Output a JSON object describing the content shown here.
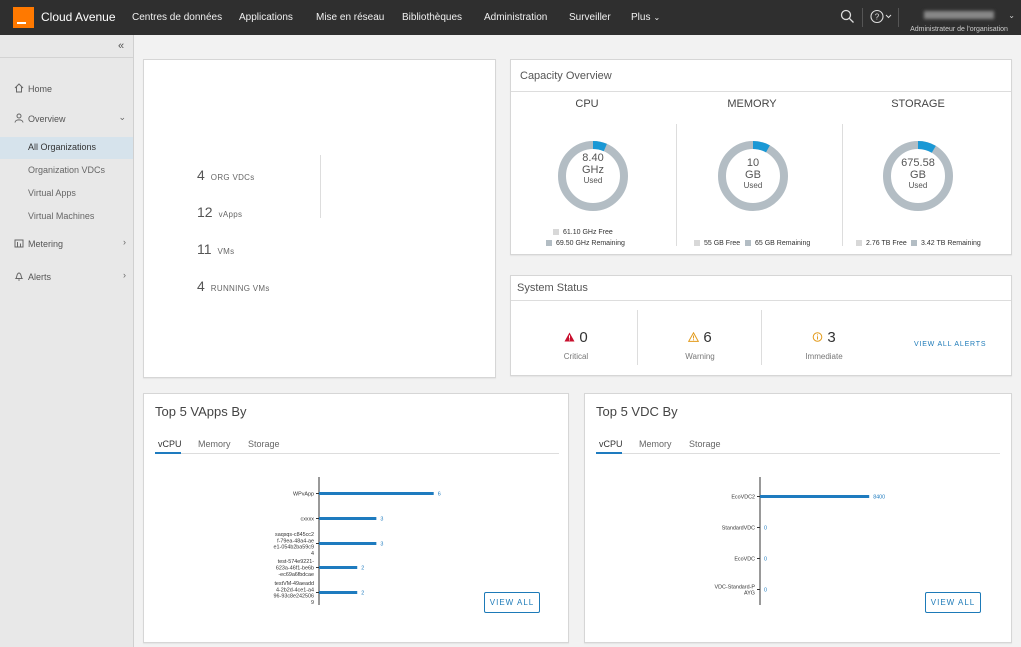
{
  "header": {
    "brand": "Cloud Avenue",
    "nav": [
      "Centres de données",
      "Applications",
      "Mise en réseau",
      "Bibliothèques",
      "Administration",
      "Surveiller",
      "Plus"
    ],
    "user_role": "Administrateur de l'organisation",
    "icons": [
      "search-icon",
      "help-icon"
    ]
  },
  "sidebar": {
    "items": [
      {
        "label": "Home",
        "icon": "home-icon"
      },
      {
        "label": "Overview",
        "icon": "user-icon"
      },
      {
        "label": "Metering",
        "icon": "chart-icon"
      },
      {
        "label": "Alerts",
        "icon": "bell-icon"
      }
    ],
    "sub_items": [
      "All Organizations",
      "Organization VDCs",
      "Virtual Apps",
      "Virtual Machines"
    ]
  },
  "summary": {
    "stats": [
      {
        "num": "4",
        "label": "ORG VDCs"
      },
      {
        "num": "12",
        "label": "vApps"
      },
      {
        "num": "11",
        "label": "VMs"
      },
      {
        "num": "4",
        "label": "RUNNING VMs"
      }
    ]
  },
  "capacity": {
    "title": "Capacity Overview",
    "gauges": [
      {
        "title": "CPU",
        "value": "8.40",
        "unit": "GHz",
        "used": "Used",
        "fraction": 0.065,
        "legend": [
          "61.10 GHz Free",
          "69.50 GHz Remaining"
        ]
      },
      {
        "title": "MEMORY",
        "value": "10",
        "unit": "GB",
        "used": "Used",
        "fraction": 0.08,
        "legend": [
          "55 GB Free",
          "65 GB Remaining"
        ]
      },
      {
        "title": "STORAGE",
        "value": "675.58",
        "unit": "GB",
        "used": "Used",
        "fraction": 0.085,
        "legend": [
          "2.76 TB Free",
          "3.42 TB Remaining"
        ]
      }
    ]
  },
  "status": {
    "title": "System Status",
    "items": [
      {
        "num": "0",
        "label": "Critical",
        "icon": "critical-icon"
      },
      {
        "num": "6",
        "label": "Warning",
        "icon": "warning-icon"
      },
      {
        "num": "3",
        "label": "Immediate",
        "icon": "info-icon"
      }
    ],
    "link": "VIEW ALL ALERTS"
  },
  "top_vapps": {
    "title": "Top 5 VApps By",
    "tabs": [
      "vCPU",
      "Memory",
      "Storage"
    ],
    "button": "VIEW ALL"
  },
  "top_vdcs": {
    "title": "Top 5 VDC By",
    "tabs": [
      "vCPU",
      "Memory",
      "Storage"
    ],
    "button": "VIEW ALL"
  },
  "colors": {
    "accent": "#1e7bbf",
    "ring_used": "#1a98d5",
    "ring_free": "#b3bdc4",
    "orange": "#ff7900",
    "critical": "#c8102e",
    "warning": "#e39b1c"
  },
  "chart_data": [
    {
      "type": "bar",
      "orientation": "horizontal",
      "categories": [
        [
          "WPvApp"
        ],
        [
          "cxxxx"
        ],
        [
          "saqsqs-c845cc2",
          "f-79ea-48a4-ae",
          "e1-054b2ba59c9",
          "4"
        ],
        [
          "test-574e9221-",
          "623a-46f1-be6b",
          "-ec69a6fbdcae"
        ],
        [
          "testVM-49aeadd",
          "4-2b2d-4ce1-a4",
          "96-93c8e242506",
          "9"
        ]
      ],
      "values": [
        6,
        3,
        3,
        2,
        2
      ],
      "xlim": [
        0,
        6.8
      ]
    },
    {
      "type": "bar",
      "orientation": "horizontal",
      "categories": [
        [
          "EcoVDC2"
        ],
        [
          "StandardVDC"
        ],
        [
          "EcoVDC"
        ],
        [
          "VDC-Standard-P",
          "AYG"
        ]
      ],
      "values": [
        8400,
        0,
        0,
        0
      ],
      "xlim": [
        0,
        10000
      ]
    }
  ]
}
